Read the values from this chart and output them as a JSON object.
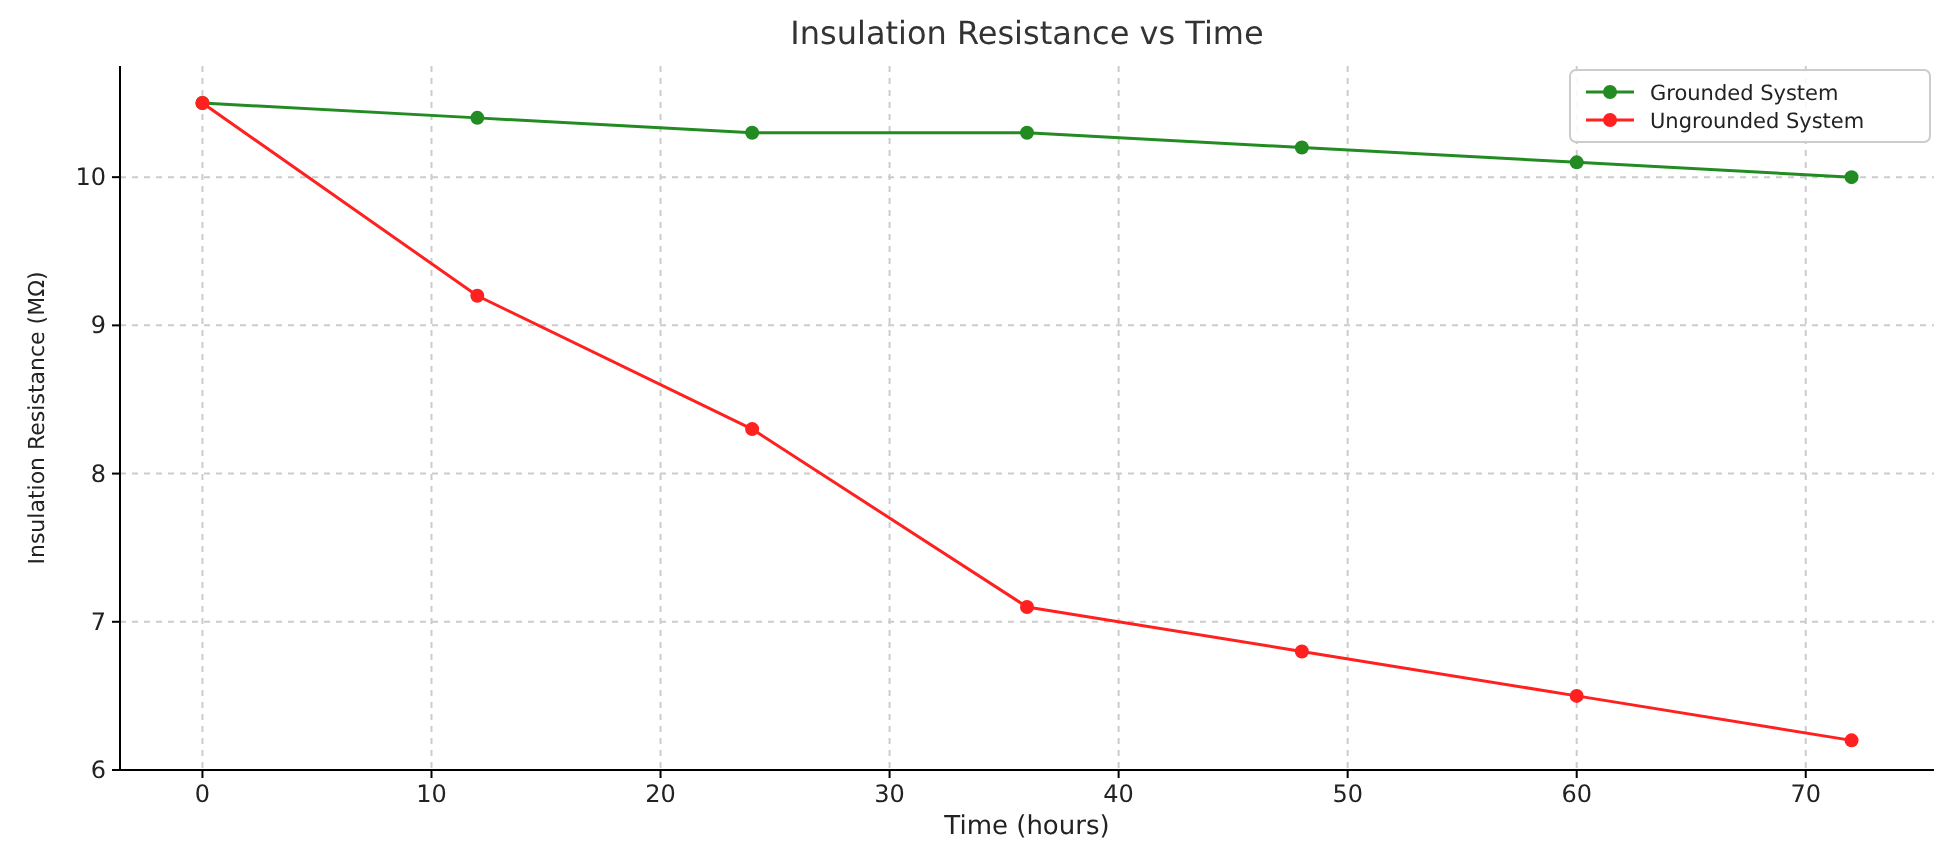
{
  "chart_data": {
    "type": "line",
    "title": "Insulation Resistance vs Time",
    "xlabel": "Time (hours)",
    "ylabel": "Insulation Resistance (MΩ)",
    "x": [
      0,
      12,
      24,
      36,
      48,
      60,
      72
    ],
    "series": [
      {
        "name": "Grounded System",
        "color": "#228b22",
        "values": [
          10.5,
          10.4,
          10.3,
          10.3,
          10.2,
          10.1,
          10.0
        ]
      },
      {
        "name": "Ungrounded System",
        "color": "#ff2020",
        "values": [
          10.5,
          9.2,
          8.3,
          7.1,
          6.8,
          6.5,
          6.2
        ]
      }
    ],
    "xlim": [
      -3.6,
      75.6
    ],
    "xticks": [
      0,
      10,
      20,
      30,
      40,
      50,
      60,
      70
    ],
    "ylim": [
      6,
      10.75
    ],
    "yticks": [
      6,
      7,
      8,
      9,
      10
    ],
    "grid": true,
    "legend": "top right",
    "marker": "circle",
    "line_style": "solid"
  }
}
